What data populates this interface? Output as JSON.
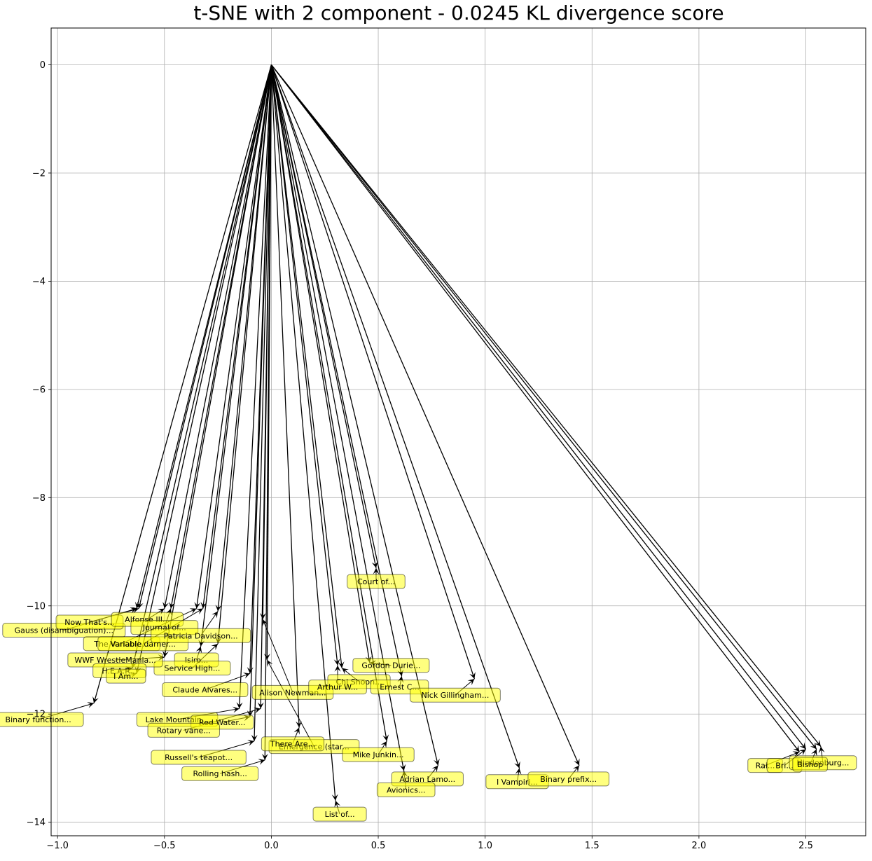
{
  "chart_data": {
    "type": "scatter",
    "title": "t-SNE with 2 component - 0.0245 KL divergence score",
    "xlabel": "",
    "ylabel": "",
    "xlim": [
      -1.03,
      2.78
    ],
    "ylim": [
      -14.25,
      0.68
    ],
    "xticks": [
      -1.0,
      -0.5,
      0.0,
      0.5,
      1.0,
      1.5,
      2.0,
      2.5
    ],
    "xtick_labels": [
      "−1.0",
      "−0.5",
      "0.0",
      "0.5",
      "1.0",
      "1.5",
      "2.0",
      "2.5"
    ],
    "yticks": [
      0,
      -2,
      -4,
      -6,
      -8,
      -10,
      -12,
      -14
    ],
    "ytick_labels": [
      "0",
      "−2",
      "−4",
      "−6",
      "−8",
      "−10",
      "−12",
      "−14"
    ],
    "grid": true,
    "origin": [
      0,
      0
    ],
    "points": [
      {
        "label": "Court of...",
        "x": 0.49,
        "y": -9.3,
        "tx": 0.49,
        "ty": -9.55
      },
      {
        "label": "Gauss (disambiguation)...",
        "x": -0.63,
        "y": -10.05,
        "tx": -0.97,
        "ty": -10.45
      },
      {
        "label": "Now That's...",
        "x": -0.62,
        "y": -10.05,
        "tx": -0.85,
        "ty": -10.3
      },
      {
        "label": "Alfonse III...",
        "x": -0.5,
        "y": -10.05,
        "tx": -0.58,
        "ty": -10.25
      },
      {
        "label": "Journal of...",
        "x": -0.47,
        "y": -10.05,
        "tx": -0.5,
        "ty": -10.4
      },
      {
        "label": "The Variable...",
        "x": -0.35,
        "y": -10.05,
        "tx": -0.7,
        "ty": -10.7
      },
      {
        "label": "Variable darner...",
        "x": -0.32,
        "y": -10.05,
        "tx": -0.6,
        "ty": -10.7
      },
      {
        "label": "Patricia Davidson...",
        "x": -0.25,
        "y": -10.1,
        "tx": -0.33,
        "ty": -10.55
      },
      {
        "label": "Isiro...",
        "x": -0.33,
        "y": -10.75,
        "tx": -0.35,
        "ty": -11.0
      },
      {
        "label": "Service High...",
        "x": -0.25,
        "y": -10.7,
        "tx": -0.37,
        "ty": -11.15
      },
      {
        "label": "WWF WrestleMania...",
        "x": -0.5,
        "y": -10.95,
        "tx": -0.73,
        "ty": -11.0
      },
      {
        "label": "H.E.A.R...",
        "x": -0.65,
        "y": -11.15,
        "tx": -0.71,
        "ty": -11.2
      },
      {
        "label": "I Am...",
        "x": -0.63,
        "y": -11.25,
        "tx": -0.68,
        "ty": -11.3
      },
      {
        "label": "Claude Alvares...",
        "x": -0.1,
        "y": -11.25,
        "tx": -0.31,
        "ty": -11.55
      },
      {
        "label": "Binary function...",
        "x": -0.83,
        "y": -11.8,
        "tx": -1.09,
        "ty": -12.1
      },
      {
        "label": "Lake Mountain...",
        "x": -0.15,
        "y": -11.9,
        "tx": -0.44,
        "ty": -12.1
      },
      {
        "label": "Red Water...",
        "x": -0.1,
        "y": -12.05,
        "tx": -0.23,
        "ty": -12.15
      },
      {
        "label": "Rotary vane...",
        "x": -0.05,
        "y": -11.9,
        "tx": -0.41,
        "ty": -12.3
      },
      {
        "label": "Russell's teapot...",
        "x": -0.08,
        "y": -12.5,
        "tx": -0.34,
        "ty": -12.8
      },
      {
        "label": "Rolling hash...",
        "x": -0.03,
        "y": -12.85,
        "tx": -0.24,
        "ty": -13.1
      },
      {
        "label": "Alison Newman...",
        "x": -0.04,
        "y": -10.25,
        "tx": 0.1,
        "ty": -11.6
      },
      {
        "label": "Emergence (star...",
        "x": -0.02,
        "y": -11.0,
        "tx": 0.2,
        "ty": -12.6
      },
      {
        "label": "There Are...",
        "x": 0.13,
        "y": -12.25,
        "tx": 0.1,
        "ty": -12.55
      },
      {
        "label": "List of...",
        "x": 0.3,
        "y": -13.6,
        "tx": 0.32,
        "ty": -13.85
      },
      {
        "label": "Gordon Durie...",
        "x": 0.46,
        "y": -11.05,
        "tx": 0.56,
        "ty": -11.1
      },
      {
        "label": "Chi Shoon...",
        "x": 0.33,
        "y": -11.15,
        "tx": 0.41,
        "ty": -11.4
      },
      {
        "label": "Arthur W...",
        "x": 0.31,
        "y": -11.1,
        "tx": 0.31,
        "ty": -11.5
      },
      {
        "label": "Ernest C...",
        "x": 0.61,
        "y": -11.3,
        "tx": 0.6,
        "ty": -11.5
      },
      {
        "label": "Nick Gillingham...",
        "x": 0.95,
        "y": -11.35,
        "tx": 0.86,
        "ty": -11.65
      },
      {
        "label": "Mike Junkin...",
        "x": 0.54,
        "y": -12.5,
        "tx": 0.5,
        "ty": -12.75
      },
      {
        "label": "Adrian Lamo...",
        "x": 0.78,
        "y": -12.95,
        "tx": 0.73,
        "ty": -13.2
      },
      {
        "label": "Avionics...",
        "x": 0.62,
        "y": -13.05,
        "tx": 0.63,
        "ty": -13.4
      },
      {
        "label": "I Vampiri...",
        "x": 1.16,
        "y": -13.0,
        "tx": 1.15,
        "ty": -13.25
      },
      {
        "label": "Binary prefix...",
        "x": 1.44,
        "y": -12.95,
        "tx": 1.39,
        "ty": -13.2
      },
      {
        "label": "Rai...",
        "x": 2.47,
        "y": -12.7,
        "tx": 2.31,
        "ty": -12.95
      },
      {
        "label": "Bri...",
        "x": 2.5,
        "y": -12.65,
        "tx": 2.4,
        "ty": -12.95
      },
      {
        "label": "Hindenburg...",
        "x": 2.57,
        "y": -12.6,
        "tx": 2.58,
        "ty": -12.9
      },
      {
        "label": "Bishop",
        "x": 2.55,
        "y": -12.65,
        "tx": 2.52,
        "ty": -12.93
      }
    ]
  }
}
